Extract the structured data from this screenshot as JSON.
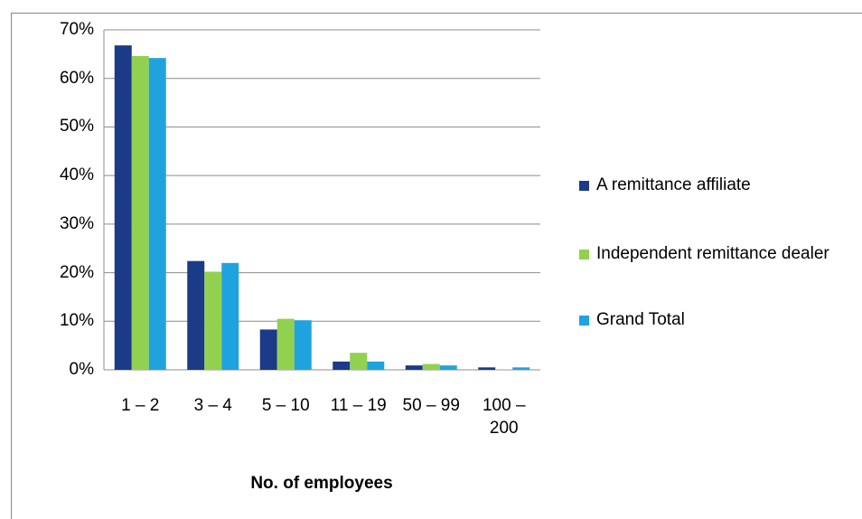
{
  "chart_data": {
    "type": "bar",
    "xlabel": "No. of employees",
    "categories": [
      "1 – 2",
      "3 – 4",
      "5 – 10",
      "11 – 19",
      "50 – 99",
      "100 – 200"
    ],
    "series": [
      {
        "name": "A remittance affiliate",
        "color": "#1b3a87",
        "values": [
          66.8,
          22.4,
          8.3,
          1.7,
          0.9,
          0.5
        ]
      },
      {
        "name": "Independent remittance dealer",
        "color": "#92d050",
        "values": [
          64.6,
          20.2,
          10.5,
          3.5,
          1.2,
          0.1
        ]
      },
      {
        "name": "Grand Total",
        "color": "#1fa3de",
        "values": [
          64.2,
          22.0,
          10.2,
          1.7,
          0.9,
          0.5
        ]
      }
    ],
    "ylim": [
      0,
      70
    ],
    "yticks": [
      {
        "value": 0,
        "label": "0%"
      },
      {
        "value": 10,
        "label": "10%"
      },
      {
        "value": 20,
        "label": "20%"
      },
      {
        "value": 30,
        "label": "30%"
      },
      {
        "value": 40,
        "label": "40%"
      },
      {
        "value": 50,
        "label": "50%"
      },
      {
        "value": 60,
        "label": "60%"
      },
      {
        "value": 70,
        "label": "70%"
      }
    ],
    "grid": true,
    "legend": "right"
  }
}
